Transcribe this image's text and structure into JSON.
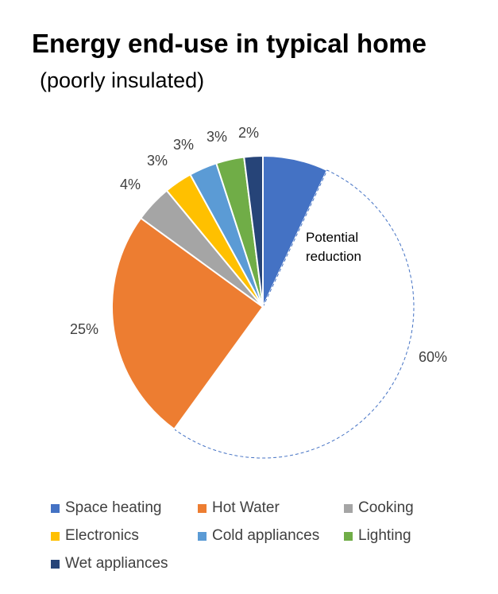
{
  "chart_data": {
    "type": "pie",
    "title": "Energy end-use in typical home",
    "subtitle": "(poorly insulated)",
    "slices": [
      {
        "name": "Space heating",
        "value": 7,
        "label": "",
        "color": "#4472C4"
      },
      {
        "name": "Potential reduction",
        "value": 53,
        "label": "60%",
        "color": "#FFFFFF",
        "dashed": true,
        "annotation": "Potential reduction"
      },
      {
        "name": "Hot Water",
        "value": 25,
        "label": "25%",
        "color": "#ED7D31"
      },
      {
        "name": "Cooking",
        "value": 4,
        "label": "4%",
        "color": "#A5A5A5"
      },
      {
        "name": "Electronics",
        "value": 3,
        "label": "3%",
        "color": "#FFC000"
      },
      {
        "name": "Cold appliances",
        "value": 3,
        "label": "3%",
        "color": "#5B9BD5"
      },
      {
        "name": "Lighting",
        "value": 3,
        "label": "3%",
        "color": "#70AD47"
      },
      {
        "name": "Wet appliances",
        "value": 2,
        "label": "2%",
        "color": "#264478"
      }
    ],
    "legend": [
      {
        "name": "Space heating",
        "color": "#4472C4"
      },
      {
        "name": "Hot Water",
        "color": "#ED7D31"
      },
      {
        "name": "Cooking",
        "color": "#A5A5A5"
      },
      {
        "name": "Electronics",
        "color": "#FFC000"
      },
      {
        "name": "Cold appliances",
        "color": "#5B9BD5"
      },
      {
        "name": "Lighting",
        "color": "#70AD47"
      },
      {
        "name": "Wet appliances",
        "color": "#264478"
      }
    ],
    "legend_placement": "bottom",
    "dashed_outline_color": "#4472C4"
  }
}
